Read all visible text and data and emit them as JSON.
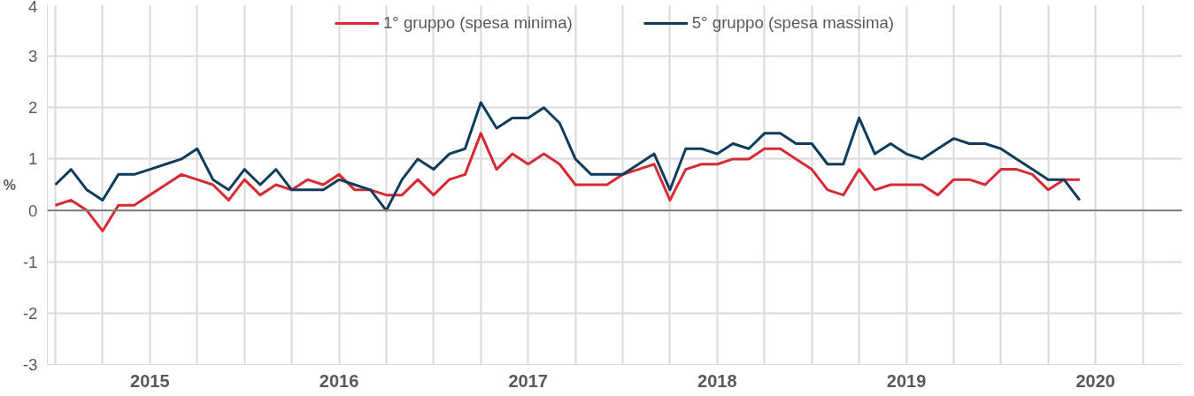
{
  "chart_data": {
    "type": "line",
    "ylabel": "%",
    "x": [
      "2015-01",
      "2015-02",
      "2015-03",
      "2015-04",
      "2015-05",
      "2015-06",
      "2015-07",
      "2015-08",
      "2015-09",
      "2015-10",
      "2015-11",
      "2015-12",
      "2016-01",
      "2016-02",
      "2016-03",
      "2016-04",
      "2016-05",
      "2016-06",
      "2016-07",
      "2016-08",
      "2016-09",
      "2016-10",
      "2016-11",
      "2016-12",
      "2017-01",
      "2017-02",
      "2017-03",
      "2017-04",
      "2017-05",
      "2017-06",
      "2017-07",
      "2017-08",
      "2017-09",
      "2017-10",
      "2017-11",
      "2017-12",
      "2018-01",
      "2018-02",
      "2018-03",
      "2018-04",
      "2018-05",
      "2018-06",
      "2018-07",
      "2018-08",
      "2018-09",
      "2018-10",
      "2018-11",
      "2018-12",
      "2019-01",
      "2019-02",
      "2019-03",
      "2019-04",
      "2019-05",
      "2019-06",
      "2019-07",
      "2019-08",
      "2019-09",
      "2019-10",
      "2019-11",
      "2019-12",
      "2020-01",
      "2020-02",
      "2020-03",
      "2020-04",
      "2020-05",
      "2020-06"
    ],
    "series": [
      {
        "name": "1° gruppo (spesa minima)",
        "color": "#d62b35",
        "values": [
          0.1,
          0.2,
          0.0,
          -0.4,
          0.1,
          0.1,
          0.3,
          0.5,
          0.7,
          0.6,
          0.5,
          0.2,
          0.6,
          0.3,
          0.5,
          0.4,
          0.6,
          0.5,
          0.7,
          0.4,
          0.4,
          0.3,
          0.3,
          0.6,
          0.3,
          0.6,
          0.7,
          1.5,
          0.8,
          1.1,
          0.9,
          1.1,
          0.9,
          0.5,
          0.5,
          0.5,
          0.7,
          0.8,
          0.9,
          0.2,
          0.8,
          0.9,
          0.9,
          1.0,
          1.0,
          1.2,
          1.2,
          1.0,
          0.8,
          0.4,
          0.3,
          0.8,
          0.4,
          0.5,
          0.5,
          0.5,
          0.3,
          0.6,
          0.6,
          0.5,
          0.8,
          0.8,
          0.7,
          0.4,
          0.6,
          0.6
        ]
      },
      {
        "name": "5° gruppo (spesa massima)",
        "color": "#0e3d5c",
        "values": [
          0.5,
          0.8,
          0.4,
          0.2,
          0.7,
          0.7,
          0.8,
          0.9,
          1.0,
          1.2,
          0.6,
          0.4,
          0.8,
          0.5,
          0.8,
          0.4,
          0.4,
          0.4,
          0.6,
          0.5,
          0.4,
          0.0,
          0.6,
          1.0,
          0.8,
          1.1,
          1.2,
          2.1,
          1.6,
          1.8,
          1.8,
          2.0,
          1.7,
          1.0,
          0.7,
          0.7,
          0.7,
          0.9,
          1.1,
          0.4,
          1.2,
          1.2,
          1.1,
          1.3,
          1.2,
          1.5,
          1.5,
          1.3,
          1.3,
          0.9,
          0.9,
          1.8,
          1.1,
          1.3,
          1.1,
          1.0,
          1.2,
          1.4,
          1.3,
          1.3,
          1.2,
          1.0,
          0.8,
          0.6,
          0.6,
          0.2
        ]
      }
    ],
    "xlim": [
      "2014-12-16",
      "2020-12-16"
    ],
    "xticks": [
      {
        "value": "2015-01",
        "label": null
      },
      {
        "value": "2015-04",
        "label": null
      },
      {
        "value": "2015-07",
        "label": "2015"
      },
      {
        "value": "2015-10",
        "label": null
      },
      {
        "value": "2016-01",
        "label": null
      },
      {
        "value": "2016-04",
        "label": null
      },
      {
        "value": "2016-07",
        "label": "2016"
      },
      {
        "value": "2016-10",
        "label": null
      },
      {
        "value": "2017-01",
        "label": null
      },
      {
        "value": "2017-04",
        "label": null
      },
      {
        "value": "2017-07",
        "label": "2017"
      },
      {
        "value": "2017-10",
        "label": null
      },
      {
        "value": "2018-01",
        "label": null
      },
      {
        "value": "2018-04",
        "label": null
      },
      {
        "value": "2018-07",
        "label": "2018"
      },
      {
        "value": "2018-10",
        "label": null
      },
      {
        "value": "2019-01",
        "label": null
      },
      {
        "value": "2019-04",
        "label": null
      },
      {
        "value": "2019-07",
        "label": "2019"
      },
      {
        "value": "2019-10",
        "label": null
      },
      {
        "value": "2020-01",
        "label": null
      },
      {
        "value": "2020-04",
        "label": null
      },
      {
        "value": "2020-07",
        "label": "2020"
      },
      {
        "value": "2020-10",
        "label": null
      }
    ],
    "ylim": [
      -3,
      4
    ],
    "yticks": [
      -3,
      -2,
      -1,
      0,
      1,
      2,
      3,
      4
    ],
    "ref_lines": [
      {
        "axis": "y",
        "value": 0,
        "label": null,
        "color": "#808080"
      }
    ],
    "grid": true,
    "legend": "top",
    "marker": "none",
    "line_style": "solid"
  }
}
